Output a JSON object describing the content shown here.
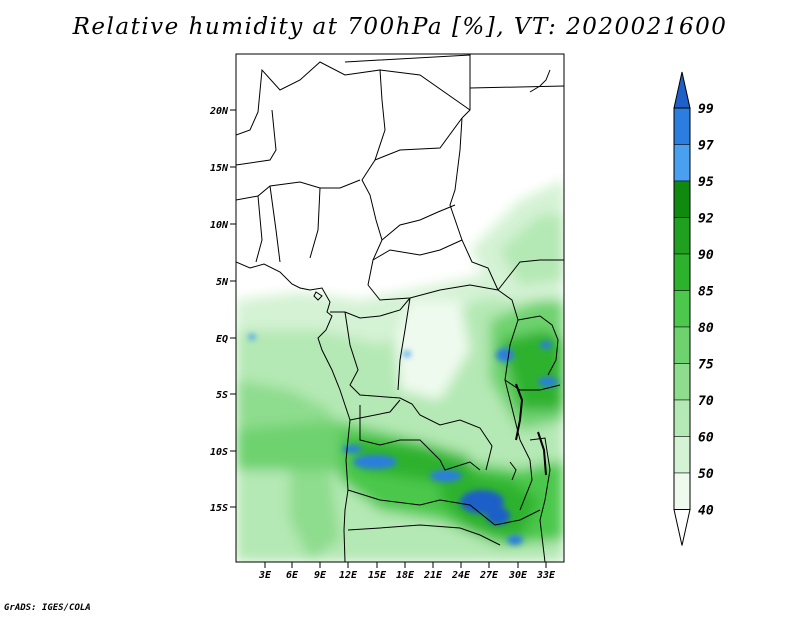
{
  "title": "Relative humidity at 700hPa [%], VT: 2020021600",
  "credit": "GrADS: IGES/COLA",
  "map": {
    "lon_range": [
      0,
      34
    ],
    "lat_range": [
      -19.5,
      24.5
    ],
    "lat_ticks": [
      "20N",
      "15N",
      "10N",
      "5N",
      "EQ",
      "5S",
      "10S",
      "15S"
    ],
    "lon_ticks": [
      "3E",
      "6E",
      "9E",
      "12E",
      "15E",
      "18E",
      "21E",
      "24E",
      "27E",
      "30E",
      "33E"
    ]
  },
  "colorbar": {
    "levels": [
      "99",
      "97",
      "95",
      "92",
      "90",
      "85",
      "80",
      "75",
      "70",
      "60",
      "50",
      "40"
    ],
    "colors": [
      "#1f5fc8",
      "#2b7ee0",
      "#4aa0f0",
      "#0f8a0f",
      "#1fa01f",
      "#2db22d",
      "#4cc84c",
      "#6ed26e",
      "#8edc8e",
      "#b4e8b4",
      "#d4f2d4",
      "#eefaee",
      "#ffffff"
    ]
  }
}
